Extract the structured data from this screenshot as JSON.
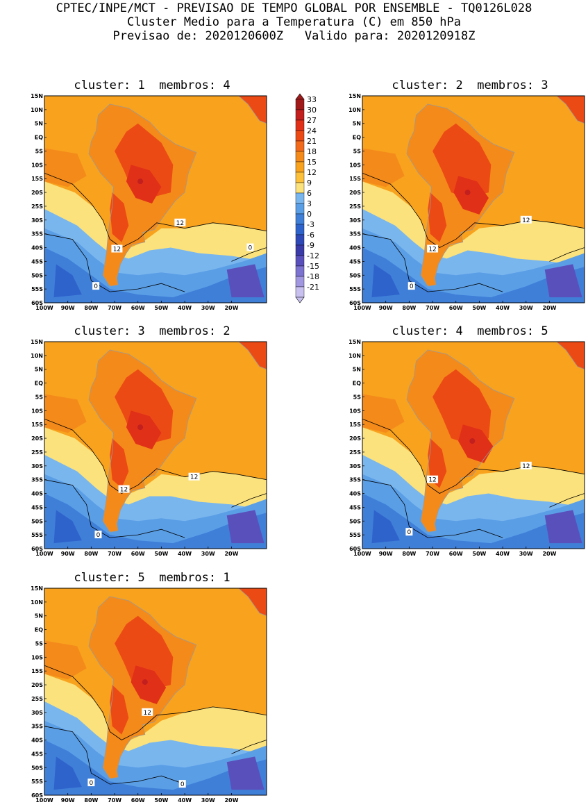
{
  "header": {
    "line1": "CPTEC/INPE/MCT - PREVISAO DE TEMPO GLOBAL POR ENSEMBLE - TQ0126L028",
    "line2": "Cluster Medio para a Temperatura (C) em 850 hPa",
    "line3": "Previsao de: 2020120600Z   Valido para: 2020120918Z"
  },
  "panels": [
    {
      "title": "cluster: 1  membros: 4",
      "contour_labels": [
        {
          "text": "12"
        },
        {
          "text": "12"
        },
        {
          "text": "0"
        },
        {
          "text": "0"
        }
      ]
    },
    {
      "title": "cluster: 2  membros: 3",
      "contour_labels": [
        {
          "text": "12"
        },
        {
          "text": "12"
        },
        {
          "text": "0"
        }
      ]
    },
    {
      "title": "cluster: 3  membros: 2",
      "contour_labels": [
        {
          "text": "12"
        },
        {
          "text": "12"
        },
        {
          "text": "0"
        }
      ]
    },
    {
      "title": "cluster: 4  membros: 5",
      "contour_labels": [
        {
          "text": "12"
        },
        {
          "text": "12"
        },
        {
          "text": "0"
        }
      ]
    },
    {
      "title": "cluster: 5  membros: 1",
      "contour_labels": [
        {
          "text": "12"
        },
        {
          "text": "0"
        },
        {
          "text": "0"
        }
      ]
    }
  ],
  "axes": {
    "lat_labels": [
      "15N",
      "10N",
      "5N",
      "EQ",
      "5S",
      "10S",
      "15S",
      "20S",
      "25S",
      "30S",
      "35S",
      "40S",
      "45S",
      "50S",
      "55S",
      "60S"
    ],
    "lon_labels": [
      "100W",
      "90W",
      "80W",
      "70W",
      "60W",
      "50W",
      "40W",
      "30W",
      "20W"
    ]
  },
  "colorbar": {
    "levels": [
      "33",
      "30",
      "27",
      "24",
      "21",
      "18",
      "15",
      "12",
      "9",
      "6",
      "3",
      "0",
      "-3",
      "-6",
      "-9",
      "-12",
      "-15",
      "-18",
      "-21"
    ],
    "colors": [
      "#a01a1a",
      "#c21f1f",
      "#e03018",
      "#ec4a15",
      "#f26a1c",
      "#f48a1a",
      "#f8a21e",
      "#fcc03a",
      "#fbe27c",
      "#7ab6ee",
      "#5a9ee6",
      "#3f7fd8",
      "#2f63cc",
      "#2f48b8",
      "#3a3aa8",
      "#5a50bc",
      "#7c72d0",
      "#a197e0",
      "#c8c0ef"
    ]
  }
}
